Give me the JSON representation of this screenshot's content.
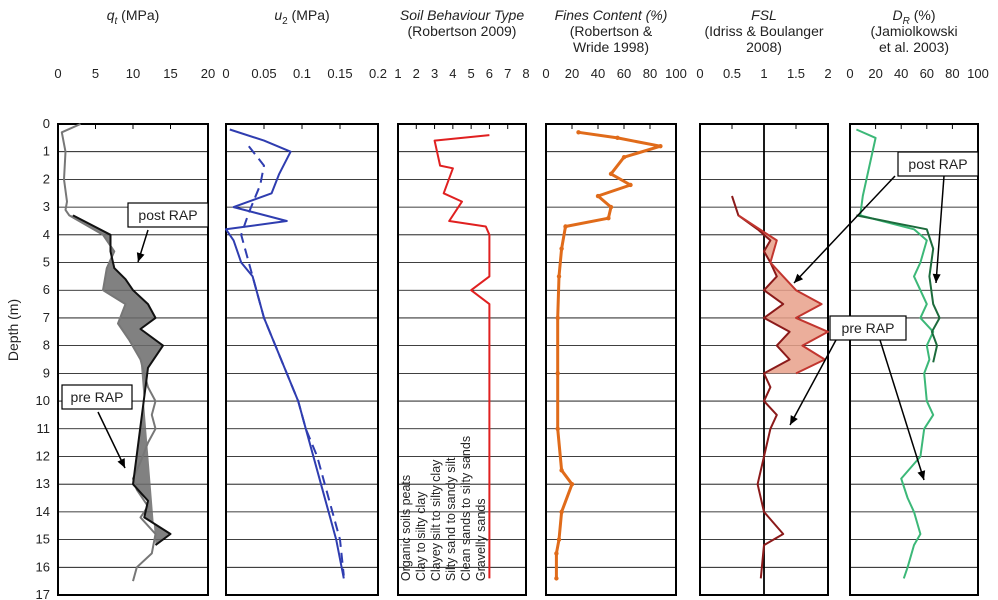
{
  "y_axis": {
    "label": "Depth (m)",
    "ticks": [
      "0",
      "1",
      "2",
      "3",
      "4",
      "5",
      "6",
      "7",
      "8",
      "9",
      "10",
      "11",
      "12",
      "13",
      "14",
      "15",
      "16",
      "17"
    ]
  },
  "chart_data": [
    {
      "id": "qt",
      "type": "line",
      "title_parts": [
        {
          "t": "q",
          "i": true
        },
        {
          "t": "t",
          "i": true,
          "sub": true
        },
        {
          "t": " (MPa)"
        }
      ],
      "xlim": [
        0,
        20
      ],
      "xticks": [
        "0",
        "5",
        "10",
        "15",
        "20"
      ],
      "series": [
        {
          "name": "pre RAP",
          "color": "#777777",
          "points": [
            [
              3,
              0
            ],
            [
              0.5,
              0.3
            ],
            [
              1,
              1
            ],
            [
              0.8,
              2
            ],
            [
              1.2,
              2.8
            ],
            [
              1.0,
              3.1
            ],
            [
              1.5,
              3.3
            ],
            [
              6,
              4.0
            ],
            [
              7.5,
              4.6
            ],
            [
              6.5,
              5.2
            ],
            [
              6.0,
              6.0
            ],
            [
              9,
              6.5
            ],
            [
              8,
              7.2
            ],
            [
              9.5,
              7.8
            ],
            [
              11,
              8.5
            ],
            [
              11.5,
              9.0
            ],
            [
              12,
              9.5
            ],
            [
              13,
              10.0
            ],
            [
              12.5,
              10.5
            ],
            [
              13,
              11.0
            ],
            [
              12,
              11.5
            ],
            [
              11,
              12.2
            ],
            [
              10,
              12.8
            ],
            [
              10.5,
              13.2
            ],
            [
              12,
              13.8
            ],
            [
              11,
              14.2
            ],
            [
              13,
              14.8
            ],
            [
              12.5,
              15.5
            ],
            [
              10.5,
              16.0
            ],
            [
              10,
              16.5
            ]
          ]
        },
        {
          "name": "post RAP",
          "color": "#111111",
          "points": [
            [
              2,
              3.3
            ],
            [
              7,
              4.0
            ],
            [
              7,
              4.6
            ],
            [
              7.5,
              5.2
            ],
            [
              9,
              5.6
            ],
            [
              10,
              6.0
            ],
            [
              12,
              6.5
            ],
            [
              13,
              7.0
            ],
            [
              11,
              7.4
            ],
            [
              14,
              8.0
            ],
            [
              13,
              8.4
            ],
            [
              12,
              8.8
            ],
            [
              10,
              13.0
            ],
            [
              12,
              13.6
            ],
            [
              11.5,
              14.2
            ],
            [
              15,
              14.8
            ],
            [
              13,
              15.2
            ]
          ]
        }
      ],
      "annotations": [
        "post RAP",
        "pre RAP"
      ]
    },
    {
      "id": "u2",
      "type": "line",
      "title_parts": [
        {
          "t": "u",
          "i": true
        },
        {
          "t": "2",
          "i": false,
          "sub": true
        },
        {
          "t": " (MPa)"
        }
      ],
      "xlim": [
        0,
        0.2
      ],
      "xticks": [
        "0",
        "0.05",
        "0.1",
        "0.15",
        "0.2"
      ],
      "series": [
        {
          "name": "",
          "color": "#2f3db0",
          "dash": false,
          "points": [
            [
              0.005,
              0.2
            ],
            [
              0.05,
              0.6
            ],
            [
              0.085,
              1.0
            ],
            [
              0.07,
              1.8
            ],
            [
              0.06,
              2.5
            ],
            [
              0.01,
              3.0
            ],
            [
              0.08,
              3.5
            ],
            [
              0,
              3.8
            ],
            [
              0.01,
              4.2
            ],
            [
              0.02,
              5.0
            ],
            [
              0.035,
              5.5
            ],
            [
              0.04,
              6.0
            ],
            [
              0.05,
              7.0
            ],
            [
              0.065,
              8.0
            ],
            [
              0.08,
              9.0
            ],
            [
              0.095,
              10.0
            ],
            [
              0.105,
              11.0
            ],
            [
              0.115,
              12.0
            ],
            [
              0.125,
              13.0
            ],
            [
              0.135,
              14.0
            ],
            [
              0.145,
              15.0
            ],
            [
              0.155,
              16.4
            ]
          ]
        },
        {
          "name": "",
          "color": "#2f3db0",
          "dash": true,
          "points": [
            [
              0.03,
              0.8
            ],
            [
              0.05,
              1.5
            ],
            [
              0.045,
              2.2
            ],
            [
              0.03,
              3.2
            ],
            [
              0.02,
              4.0
            ],
            [
              0.03,
              5.0
            ],
            [
              0.04,
              6.0
            ],
            [
              0.05,
              7.0
            ],
            [
              0.065,
              8.0
            ],
            [
              0.08,
              9.0
            ],
            [
              0.095,
              10.0
            ],
            [
              0.105,
              11.0
            ],
            [
              0.12,
              12.0
            ],
            [
              0.13,
              13.0
            ],
            [
              0.14,
              14.0
            ],
            [
              0.15,
              15.0
            ],
            [
              0.155,
              16.3
            ]
          ]
        }
      ]
    },
    {
      "id": "sbt",
      "type": "line",
      "title_parts": [
        {
          "t": "Soil Behaviour Type",
          "i": true
        }
      ],
      "subtitle": "(Robertson 2009)",
      "xlim": [
        1,
        8
      ],
      "xticks": [
        "1",
        "2",
        "3",
        "4",
        "5",
        "6",
        "7",
        "8"
      ],
      "series": [
        {
          "name": "",
          "color": "#e02020",
          "points": [
            [
              6,
              0.4
            ],
            [
              3,
              0.6
            ],
            [
              3.3,
              1.5
            ],
            [
              4,
              1.6
            ],
            [
              3.5,
              2.5
            ],
            [
              4.5,
              2.8
            ],
            [
              3.8,
              3.5
            ],
            [
              5.8,
              3.7
            ],
            [
              6,
              4.0
            ],
            [
              6,
              5.5
            ],
            [
              5,
              6.0
            ],
            [
              6,
              6.5
            ],
            [
              6,
              16.4
            ]
          ]
        }
      ],
      "soil_types": [
        "Organic soils peats",
        "Clay to silty clay",
        "Clayey silt to silty clay",
        "Silty sand to sandy silt",
        "Clean sands to silty sands",
        "Gravelly sands"
      ]
    },
    {
      "id": "fc",
      "type": "scatter",
      "title_parts": [
        {
          "t": "Fines Content (%)",
          "i": true
        }
      ],
      "subtitle": "(Robertson &\nWride 1998)",
      "xlim": [
        0,
        100
      ],
      "xticks": [
        "0",
        "20",
        "40",
        "60",
        "80",
        "100"
      ],
      "series": [
        {
          "name": "",
          "color": "#e06b1a",
          "points": [
            [
              25,
              0.3
            ],
            [
              55,
              0.5
            ],
            [
              88,
              0.8
            ],
            [
              60,
              1.2
            ],
            [
              50,
              1.8
            ],
            [
              65,
              2.2
            ],
            [
              40,
              2.6
            ],
            [
              50,
              3.0
            ],
            [
              48,
              3.4
            ],
            [
              15,
              3.7
            ],
            [
              12,
              4.5
            ],
            [
              10,
              5.5
            ],
            [
              9,
              7.0
            ],
            [
              9,
              9.0
            ],
            [
              9,
              11.0
            ],
            [
              12,
              12.5
            ],
            [
              20,
              13.0
            ],
            [
              12,
              14.0
            ],
            [
              10,
              15.0
            ],
            [
              8,
              15.5
            ],
            [
              8,
              16.4
            ]
          ]
        }
      ]
    },
    {
      "id": "fsl",
      "type": "area",
      "title_parts": [
        {
          "t": "FSL",
          "i": true
        }
      ],
      "subtitle": "(Idriss & Boulanger\n2008)",
      "xlim": [
        0,
        2
      ],
      "xticks": [
        "0",
        "0.5",
        "1",
        "1.5",
        "2"
      ],
      "series": [
        {
          "name": "pre RAP",
          "color": "#8b1a1a",
          "points": [
            [
              0.5,
              2.6
            ],
            [
              0.6,
              3.3
            ],
            [
              0.9,
              3.8
            ],
            [
              1.1,
              4.2
            ],
            [
              1.0,
              4.6
            ],
            [
              1.1,
              5.0
            ],
            [
              1.2,
              5.5
            ],
            [
              1.0,
              6.0
            ],
            [
              1.3,
              6.5
            ],
            [
              1.0,
              7.0
            ],
            [
              1.4,
              7.5
            ],
            [
              1.2,
              8.0
            ],
            [
              1.4,
              8.5
            ],
            [
              1.0,
              9.0
            ],
            [
              1.1,
              9.5
            ],
            [
              1.0,
              10.0
            ],
            [
              1.2,
              10.5
            ],
            [
              1.1,
              11.0
            ],
            [
              1.0,
              12.0
            ],
            [
              0.9,
              13.0
            ],
            [
              1.0,
              14.0
            ],
            [
              1.3,
              14.8
            ],
            [
              1.0,
              15.2
            ],
            [
              0.95,
              16.4
            ]
          ]
        },
        {
          "name": "post RAP",
          "color": "#c2362f",
          "points": [
            [
              0.6,
              3.3
            ],
            [
              1.2,
              4.2
            ],
            [
              1.1,
              5.0
            ],
            [
              1.3,
              5.5
            ],
            [
              1.5,
              6.0
            ],
            [
              1.9,
              6.5
            ],
            [
              1.5,
              7.0
            ],
            [
              2.0,
              7.5
            ],
            [
              1.6,
              8.0
            ],
            [
              1.95,
              8.5
            ],
            [
              1.5,
              9.0
            ]
          ]
        }
      ],
      "annotations": [
        "post RAP",
        "pre RAP"
      ]
    },
    {
      "id": "dr",
      "type": "area",
      "title_parts": [
        {
          "t": "D",
          "i": true
        },
        {
          "t": "R",
          "i": true,
          "sub": true
        },
        {
          "t": " (%)"
        }
      ],
      "subtitle": "(Jamiolkowski\net al. 2003)",
      "xlim": [
        0,
        100
      ],
      "xticks": [
        "0",
        "20",
        "40",
        "60",
        "80",
        "100"
      ],
      "series": [
        {
          "name": "pre RAP",
          "color": "#3cb878",
          "points": [
            [
              5,
              0.2
            ],
            [
              20,
              0.5
            ],
            [
              10,
              2.6
            ],
            [
              8,
              3.3
            ],
            [
              50,
              3.8
            ],
            [
              60,
              4.2
            ],
            [
              55,
              5.0
            ],
            [
              50,
              5.5
            ],
            [
              60,
              6.5
            ],
            [
              55,
              7.0
            ],
            [
              65,
              7.5
            ],
            [
              60,
              8.0
            ],
            [
              62,
              8.5
            ],
            [
              58,
              9.0
            ],
            [
              60,
              10.0
            ],
            [
              65,
              10.5
            ],
            [
              58,
              11.0
            ],
            [
              55,
              12.0
            ],
            [
              40,
              12.8
            ],
            [
              45,
              13.5
            ],
            [
              50,
              14.0
            ],
            [
              55,
              14.8
            ],
            [
              50,
              15.2
            ],
            [
              45,
              16.0
            ],
            [
              42,
              16.4
            ]
          ]
        },
        {
          "name": "post RAP",
          "color": "#1c6b3c",
          "points": [
            [
              5,
              3.3
            ],
            [
              60,
              3.8
            ],
            [
              65,
              4.5
            ],
            [
              62,
              5.5
            ],
            [
              65,
              6.5
            ],
            [
              70,
              7.0
            ],
            [
              64,
              7.5
            ],
            [
              68,
              8.0
            ],
            [
              65,
              8.6
            ]
          ]
        }
      ],
      "annotations": [
        "post RAP",
        "pre RAP"
      ]
    }
  ]
}
